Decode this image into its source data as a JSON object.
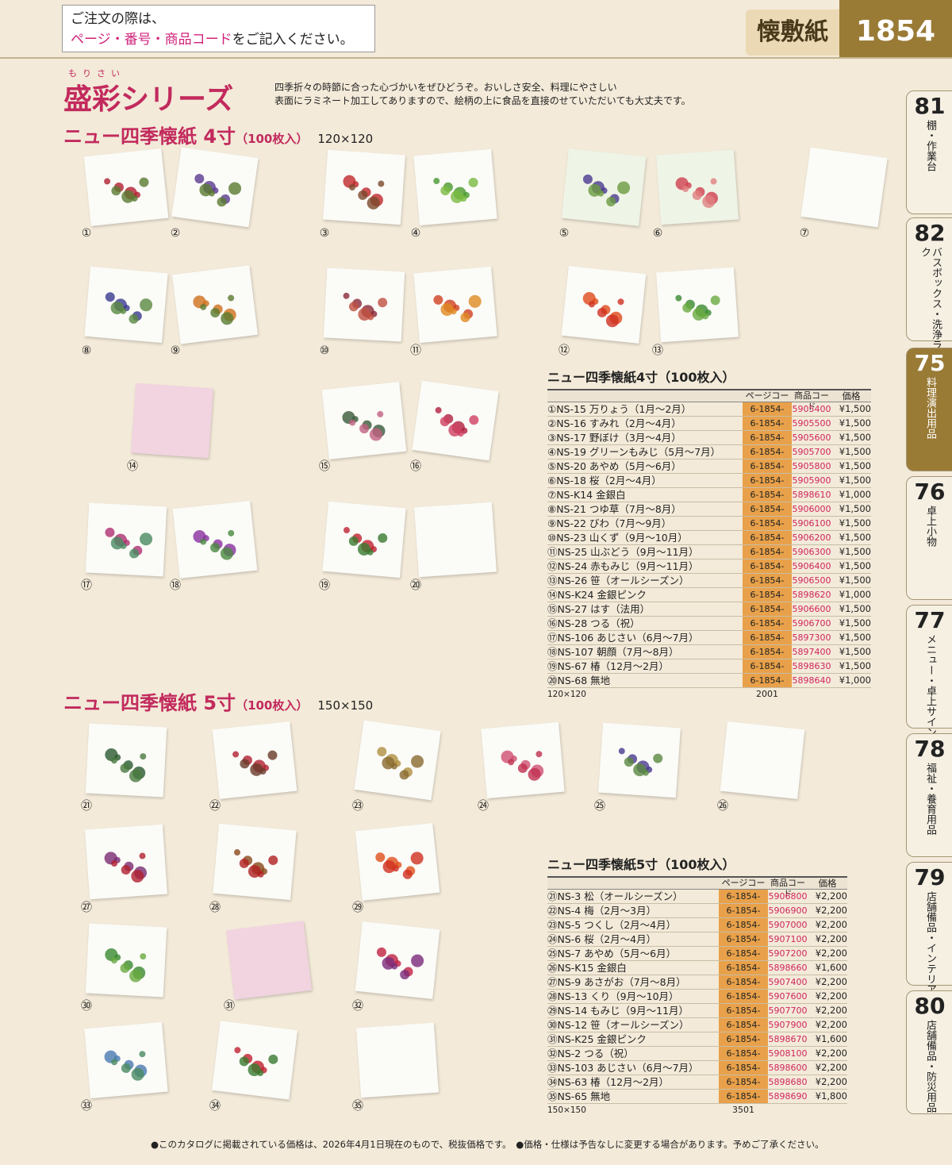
{
  "header": {
    "order_line1": "ご注文の際は、",
    "order_line2_red": "ページ・番号・商品コード",
    "order_line2_rest": "をご記入ください。",
    "category": "懐敷紙",
    "page_number": "1854"
  },
  "series": {
    "ruby": "もりさい",
    "title": "盛彩シリーズ",
    "desc_line1": "四季折々の時節に合った心づかいをぜひどうぞ。おいしさ安全、料理にやさしい",
    "desc_line2": "表面にラミネート加工してありますので、絵柄の上に食品を直接のせていただいても大丈夫です。"
  },
  "section4": {
    "title": "ニュー四季懐紙 4寸",
    "qty": "（100枚入）",
    "size": "120×120"
  },
  "section5": {
    "title": "ニュー四季懐紙 5寸",
    "qty": "（100枚入）",
    "size": "150×150"
  },
  "table_headers": {
    "page": "ページコード",
    "code": "商品コード",
    "price": "価格"
  },
  "table4": {
    "title": "ニュー四季懐紙4寸（100枚入）",
    "note": "120×120",
    "rows": [
      {
        "name": "①NS-15 万りょう（1月～2月）",
        "page": "6-1854-0101",
        "code": "5905400",
        "price": "¥1,500"
      },
      {
        "name": "②NS-16 すみれ（2月～4月）",
        "page": "6-1854-0201",
        "code": "5905500",
        "price": "¥1,500"
      },
      {
        "name": "③NS-17 野ぼけ（3月～4月）",
        "page": "6-1854-0301",
        "code": "5905600",
        "price": "¥1,500"
      },
      {
        "name": "④NS-19 グリーンもみじ（5月～7月）",
        "page": "6-1854-0401",
        "code": "5905700",
        "price": "¥1,500"
      },
      {
        "name": "⑤NS-20 あやめ（5月～6月）",
        "page": "6-1854-0501",
        "code": "5905800",
        "price": "¥1,500"
      },
      {
        "name": "⑥NS-18 桜（2月～4月）",
        "page": "6-1854-0601",
        "code": "5905900",
        "price": "¥1,500"
      },
      {
        "name": "⑦NS-K14 金銀白",
        "page": "6-1854-0701",
        "code": "5898610",
        "price": "¥1,000"
      },
      {
        "name": "⑧NS-21 つゆ草（7月～8月）",
        "page": "6-1854-0801",
        "code": "5906000",
        "price": "¥1,500"
      },
      {
        "name": "⑨NS-22 びわ（7月～9月）",
        "page": "6-1854-0901",
        "code": "5906100",
        "price": "¥1,500"
      },
      {
        "name": "⑩NS-23 山くず（9月～10月）",
        "page": "6-1854-1001",
        "code": "5906200",
        "price": "¥1,500"
      },
      {
        "name": "⑪NS-25 山ぶどう（9月～11月）",
        "page": "6-1854-1101",
        "code": "5906300",
        "price": "¥1,500"
      },
      {
        "name": "⑫NS-24 赤もみじ（9月～11月）",
        "page": "6-1854-1201",
        "code": "5906400",
        "price": "¥1,500"
      },
      {
        "name": "⑬NS-26 笹（オールシーズン）",
        "page": "6-1854-1301",
        "code": "5906500",
        "price": "¥1,500"
      },
      {
        "name": "⑭NS-K24 金銀ピンク",
        "page": "6-1854-1401",
        "code": "5898620",
        "price": "¥1,000"
      },
      {
        "name": "⑮NS-27 はす（法用）",
        "page": "6-1854-1501",
        "code": "5906600",
        "price": "¥1,500"
      },
      {
        "name": "⑯NS-28 つる（祝）",
        "page": "6-1854-1601",
        "code": "5906700",
        "price": "¥1,500"
      },
      {
        "name": "⑰NS-106 あじさい（6月～7月）",
        "page": "6-1854-1701",
        "code": "5897300",
        "price": "¥1,500"
      },
      {
        "name": "⑱NS-107 朝顔（7月～8月）",
        "page": "6-1854-1801",
        "code": "5897400",
        "price": "¥1,500"
      },
      {
        "name": "⑲NS-67 椿（12月～2月）",
        "page": "6-1854-1901",
        "code": "5898630",
        "price": "¥1,500"
      },
      {
        "name": "⑳NS-68 無地",
        "page": "6-1854-2001",
        "code": "5898640",
        "price": "¥1,000"
      }
    ]
  },
  "table5": {
    "title": "ニュー四季懐紙5寸（100枚入）",
    "note": "150×150",
    "rows": [
      {
        "name": "㉑NS-3 松（オールシーズン）",
        "page": "6-1854-2101",
        "code": "5906800",
        "price": "¥2,200"
      },
      {
        "name": "㉒NS-4 梅（2月～3月）",
        "page": "6-1854-2201",
        "code": "5906900",
        "price": "¥2,200"
      },
      {
        "name": "㉓NS-5 つくし（2月～4月）",
        "page": "6-1854-2301",
        "code": "5907000",
        "price": "¥2,200"
      },
      {
        "name": "㉔NS-6 桜（2月～4月）",
        "page": "6-1854-2401",
        "code": "5907100",
        "price": "¥2,200"
      },
      {
        "name": "㉕NS-7 あやめ（5月～6月）",
        "page": "6-1854-2501",
        "code": "5907200",
        "price": "¥2,200"
      },
      {
        "name": "㉖NS-K15 金銀白",
        "page": "6-1854-2601",
        "code": "5898660",
        "price": "¥1,600"
      },
      {
        "name": "㉗NS-9 あさがお（7月～8月）",
        "page": "6-1854-2701",
        "code": "5907400",
        "price": "¥2,200"
      },
      {
        "name": "㉘NS-13 くり（9月～10月）",
        "page": "6-1854-2801",
        "code": "5907600",
        "price": "¥2,200"
      },
      {
        "name": "㉙NS-14 もみじ（9月～11月）",
        "page": "6-1854-2901",
        "code": "5907700",
        "price": "¥2,200"
      },
      {
        "name": "㉚NS-12 笹（オールシーズン）",
        "page": "6-1854-3001",
        "code": "5907900",
        "price": "¥2,200"
      },
      {
        "name": "㉛NS-K25 金銀ピンク",
        "page": "6-1854-3101",
        "code": "5898670",
        "price": "¥1,600"
      },
      {
        "name": "㉜NS-2 つる（祝）",
        "page": "6-1854-3201",
        "code": "5908100",
        "price": "¥2,200"
      },
      {
        "name": "㉝NS-103 あじさい（6月～7月）",
        "page": "6-1854-3301",
        "code": "5898600",
        "price": "¥2,200"
      },
      {
        "name": "㉞NS-63 椿（12月～2月）",
        "page": "6-1854-3401",
        "code": "5898680",
        "price": "¥2,200"
      },
      {
        "name": "㉟NS-65 無地",
        "page": "6-1854-3501",
        "code": "5898690",
        "price": "¥1,800"
      }
    ]
  },
  "products": [
    {
      "num": "①",
      "motif": [
        "#b02030",
        "#5a7a30"
      ]
    },
    {
      "num": "②",
      "motif": [
        "#5a3a90",
        "#5a7a30"
      ]
    },
    {
      "num": "③",
      "motif": [
        "#c0282a",
        "#7a4a2a"
      ]
    },
    {
      "num": "④",
      "motif": [
        "#4a9a30",
        "#7aba40"
      ]
    },
    {
      "num": "⑤",
      "motif": [
        "#4a3a90",
        "#6a9a40"
      ]
    },
    {
      "num": "⑥",
      "motif": [
        "#d04050",
        "#e08080"
      ]
    },
    {
      "num": "⑦",
      "motif": []
    },
    {
      "num": "⑧",
      "motif": [
        "#3a3a90",
        "#5a8a40"
      ]
    },
    {
      "num": "⑨",
      "motif": [
        "#d0701a",
        "#5a7a30"
      ]
    },
    {
      "num": "⑩",
      "motif": [
        "#8a2a3a",
        "#c05040"
      ]
    },
    {
      "num": "⑪",
      "motif": [
        "#d04020",
        "#e08a20"
      ]
    },
    {
      "num": "⑫",
      "motif": [
        "#e04a1a",
        "#d03020"
      ]
    },
    {
      "num": "⑬",
      "motif": [
        "#3a8a30",
        "#6aaa40"
      ]
    },
    {
      "num": "⑭",
      "motif": []
    },
    {
      "num": "⑮",
      "motif": [
        "#3a5a3a",
        "#c06080"
      ]
    },
    {
      "num": "⑯",
      "motif": [
        "#b02040",
        "#d04060"
      ]
    },
    {
      "num": "⑰",
      "motif": [
        "#b03070",
        "#4a8a60"
      ]
    },
    {
      "num": "⑱",
      "motif": [
        "#8a30a0",
        "#4a8a40"
      ]
    },
    {
      "num": "⑲",
      "motif": [
        "#c02030",
        "#3a7a30"
      ]
    },
    {
      "num": "⑳",
      "motif": []
    },
    {
      "num": "㉑",
      "motif": [
        "#2a5a30",
        "#4a7a40"
      ]
    },
    {
      "num": "㉒",
      "motif": [
        "#b02030",
        "#6a3a2a"
      ]
    },
    {
      "num": "㉓",
      "motif": [
        "#b09040",
        "#8a6a30"
      ]
    },
    {
      "num": "㉔",
      "motif": [
        "#d05070",
        "#c03050"
      ]
    },
    {
      "num": "㉕",
      "motif": [
        "#4a3a90",
        "#5a8a40"
      ]
    },
    {
      "num": "㉖",
      "motif": []
    },
    {
      "num": "㉗",
      "motif": [
        "#7a2a70",
        "#b02030"
      ]
    },
    {
      "num": "㉘",
      "motif": [
        "#8a4a1a",
        "#b02020"
      ]
    },
    {
      "num": "㉙",
      "motif": [
        "#e0501a",
        "#d03020"
      ]
    },
    {
      "num": "㉚",
      "motif": [
        "#3a8a30",
        "#6aaa40"
      ]
    },
    {
      "num": "㉛",
      "motif": []
    },
    {
      "num": "㉜",
      "motif": [
        "#c02040",
        "#7a2a7a"
      ]
    },
    {
      "num": "㉝",
      "motif": [
        "#4a7ab0",
        "#4a8a60"
      ]
    },
    {
      "num": "㉞",
      "motif": [
        "#c02030",
        "#3a7a30"
      ]
    },
    {
      "num": "㉟",
      "motif": []
    }
  ],
  "side_tabs": [
    {
      "num": "81",
      "label": "棚・作業台"
    },
    {
      "num": "82",
      "label": "バスボックス・洗浄ラック"
    },
    {
      "num": "75",
      "label": "料理演出用品"
    },
    {
      "num": "76",
      "label": "卓上小物"
    },
    {
      "num": "77",
      "label": "メニュー・卓上サイン"
    },
    {
      "num": "78",
      "label": "福祉・養育用品"
    },
    {
      "num": "79",
      "label": "店舗備品・インテリア"
    },
    {
      "num": "80",
      "label": "店舗備品・防災用品"
    }
  ],
  "footer": "●このカタログに掲載されている価格は、2026年4月1日現在のもので、税抜価格です。　●価格・仕様は予告なしに変更する場合があります。予めご了承ください。"
}
